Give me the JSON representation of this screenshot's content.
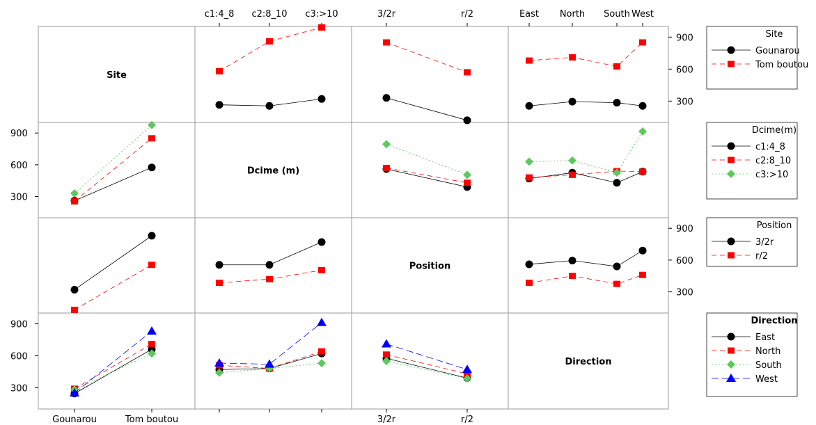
{
  "chart_data": {
    "type": "line",
    "title": "",
    "factors": [
      {
        "name": "Site",
        "legend_title": "Site",
        "levels": [
          "Gounarou",
          "Tom boutou"
        ]
      },
      {
        "name": "Dcime (m)",
        "legend_title": "Dcime(m)",
        "levels": [
          "c1:4_8",
          "c2:8_10",
          "c3:>10"
        ]
      },
      {
        "name": "Position",
        "legend_title": "Position",
        "levels": [
          "3/2r",
          "r/2"
        ]
      },
      {
        "name": "Direction",
        "legend_title": "Direction",
        "levels": [
          "East",
          "North",
          "South",
          "West"
        ]
      }
    ],
    "y_ticks": [
      300,
      600,
      900
    ],
    "ylim": [
      100,
      1000
    ],
    "series_colors": [
      "#000000",
      "#ff0000",
      "#5ec85e",
      "#0000ff"
    ],
    "series_markers": [
      "circle",
      "square",
      "diamond",
      "triangle"
    ],
    "cells": [
      {
        "row": 0,
        "col": 1,
        "values": [
          [
            265,
            255,
            320
          ],
          [
            580,
            860,
            990
          ]
        ]
      },
      {
        "row": 0,
        "col": 2,
        "values": [
          [
            330,
            120
          ],
          [
            850,
            570
          ]
        ]
      },
      {
        "row": 0,
        "col": 3,
        "values": [
          [
            255,
            295,
            285,
            255
          ],
          [
            680,
            710,
            625,
            850
          ]
        ]
      },
      {
        "row": 1,
        "col": 0,
        "values": [
          [
            260,
            575
          ],
          [
            255,
            850
          ],
          [
            330,
            975
          ]
        ]
      },
      {
        "row": 1,
        "col": 2,
        "values": [
          [
            560,
            390
          ],
          [
            570,
            430
          ],
          [
            795,
            505
          ]
        ]
      },
      {
        "row": 1,
        "col": 3,
        "values": [
          [
            470,
            525,
            430,
            535
          ],
          [
            480,
            505,
            540,
            535
          ],
          [
            630,
            640,
            525,
            915
          ]
        ]
      },
      {
        "row": 2,
        "col": 0,
        "values": [
          [
            320,
            830
          ],
          [
            130,
            555
          ]
        ]
      },
      {
        "row": 2,
        "col": 1,
        "values": [
          [
            555,
            555,
            770
          ],
          [
            385,
            420,
            505
          ]
        ]
      },
      {
        "row": 2,
        "col": 3,
        "values": [
          [
            560,
            595,
            540,
            690
          ],
          [
            385,
            450,
            375,
            460
          ]
        ]
      },
      {
        "row": 3,
        "col": 0,
        "values": [
          [
            245,
            660
          ],
          [
            290,
            710
          ],
          [
            280,
            620
          ],
          [
            250,
            830
          ]
        ]
      },
      {
        "row": 3,
        "col": 1,
        "values": [
          [
            470,
            480,
            620
          ],
          [
            510,
            480,
            640
          ],
          [
            440,
            480,
            530
          ],
          [
            530,
            520,
            910
          ]
        ]
      },
      {
        "row": 3,
        "col": 2,
        "values": [
          [
            575,
            390
          ],
          [
            610,
            430
          ],
          [
            550,
            385
          ],
          [
            710,
            470
          ]
        ]
      }
    ]
  }
}
